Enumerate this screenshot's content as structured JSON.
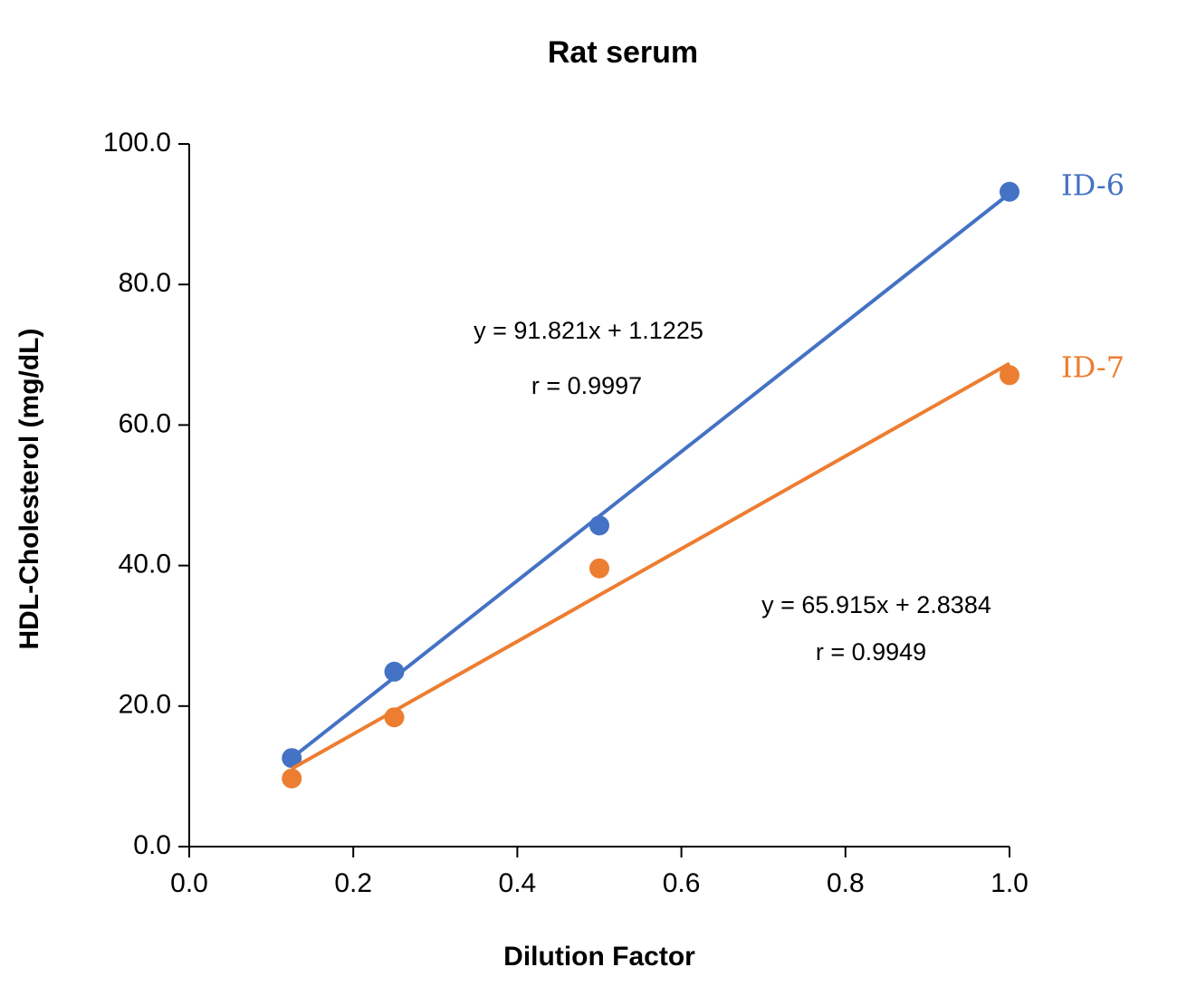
{
  "chart_data": {
    "type": "scatter",
    "title": "Rat serum",
    "x_label": "Dilution Factor",
    "y_label": "HDL-Cholesterol (mg/dL)",
    "x": [
      0.125,
      0.25,
      0.5,
      1.0
    ],
    "series": [
      {
        "name": "ID-6",
        "color": "#4472c4",
        "values": [
          12.6,
          24.9,
          45.7,
          93.2
        ],
        "trendline": {
          "slope": 91.821,
          "intercept": 1.1225,
          "label": "y = 91.821x + 1.1225",
          "r_label": "r = 0.9997"
        }
      },
      {
        "name": "ID-7",
        "color": "#ed7d31",
        "values": [
          9.7,
          18.4,
          39.6,
          67.1
        ],
        "trendline": {
          "slope": 65.915,
          "intercept": 2.8384,
          "label": "y = 65.915x + 2.8384",
          "r_label": "r = 0.9949"
        }
      }
    ],
    "xlim": [
      0,
      1
    ],
    "ylim": [
      0,
      100
    ],
    "xticks": [
      {
        "value": 0,
        "label": "0.0"
      },
      {
        "value": 0.2,
        "label": "0.2"
      },
      {
        "value": 0.4,
        "label": "0.4"
      },
      {
        "value": 0.6,
        "label": "0.6"
      },
      {
        "value": 0.8,
        "label": "0.8"
      },
      {
        "value": 1,
        "label": "1.0"
      }
    ],
    "yticks": [
      {
        "value": 0,
        "label": "0.0"
      },
      {
        "value": 20,
        "label": "20.0"
      },
      {
        "value": 40,
        "label": "40.0"
      },
      {
        "value": 60,
        "label": "60.0"
      },
      {
        "value": 80,
        "label": "80.0"
      },
      {
        "value": 100,
        "label": "100.0"
      }
    ],
    "grid": false
  }
}
